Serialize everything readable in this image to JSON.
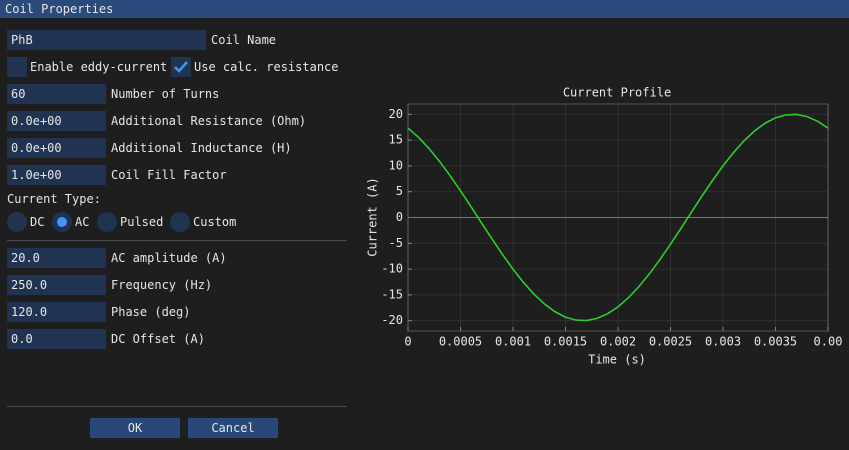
{
  "window": {
    "title": "Coil Properties"
  },
  "name_field": {
    "value": "PhB",
    "label": "Coil Name"
  },
  "checkboxes": [
    {
      "label": "Enable eddy-current",
      "checked": false
    },
    {
      "label": "Use calc. resistance",
      "checked": true
    }
  ],
  "fields": [
    {
      "value": "60",
      "label": "Number of Turns"
    },
    {
      "value": "0.0e+00",
      "label": "Additional Resistance (Ohm)"
    },
    {
      "value": "0.0e+00",
      "label": "Additional Inductance (H)"
    },
    {
      "value": "1.0e+00",
      "label": "Coil Fill Factor"
    }
  ],
  "current_type": {
    "label": "Current Type:",
    "options": [
      "DC",
      "AC",
      "Pulsed",
      "Custom"
    ],
    "selected": 1
  },
  "ac_fields": [
    {
      "value": "20.0",
      "label": "AC amplitude (A)"
    },
    {
      "value": "250.0",
      "label": "Frequency (Hz)"
    },
    {
      "value": "120.0",
      "label": "Phase (deg)"
    },
    {
      "value": "0.0",
      "label": "DC Offset (A)"
    }
  ],
  "buttons": [
    "OK",
    "Cancel"
  ],
  "chart_data": {
    "type": "line",
    "title": "Current Profile",
    "x_label": "Time (s)",
    "y_label": "Current (A)",
    "color": "#2ecc2e",
    "x": [
      0,
      0.0001,
      0.0002,
      0.0003,
      0.0004,
      0.0005,
      0.0006,
      0.0007,
      0.0008,
      0.0009,
      0.001,
      0.0011,
      0.0012,
      0.0013,
      0.0014,
      0.0015,
      0.0016,
      0.0017,
      0.0018,
      0.0019,
      0.002,
      0.0021,
      0.0022,
      0.0023,
      0.0024,
      0.0025,
      0.0026,
      0.0027,
      0.0028,
      0.0029,
      0.003,
      0.0031,
      0.0032,
      0.0033,
      0.0034,
      0.0035,
      0.0036,
      0.0037,
      0.0038,
      0.0039,
      0.004
    ],
    "values": [
      17.32,
      15.54,
      13.38,
      10.89,
      8.13,
      5.18,
      2.09,
      -1.05,
      -4.16,
      -7.17,
      -10,
      -12.59,
      -14.86,
      -16.77,
      -18.27,
      -19.32,
      -19.89,
      -19.97,
      -19.56,
      -18.67,
      -17.32,
      -15.54,
      -13.38,
      -10.89,
      -8.13,
      -5.18,
      -2.09,
      1.05,
      4.16,
      7.17,
      10,
      12.59,
      14.86,
      16.77,
      18.27,
      19.32,
      19.89,
      19.97,
      19.56,
      18.67,
      17.32
    ],
    "xlim": [
      0,
      0.004
    ],
    "xticks": [
      0,
      0.0005,
      0.001,
      0.0015,
      0.002,
      0.0025,
      0.003,
      0.0035,
      {
        "value": 0.004,
        "label": "0.00"
      }
    ],
    "ylim": [
      -22,
      22
    ],
    "yticks": [
      -20,
      -15,
      -10,
      -5,
      0,
      5,
      10,
      15,
      20
    ],
    "grid": true
  }
}
